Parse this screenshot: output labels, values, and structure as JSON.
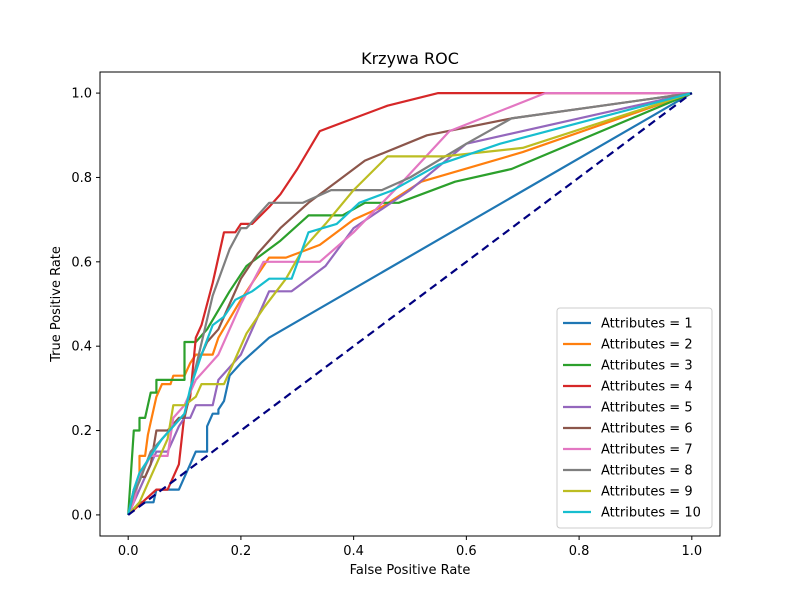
{
  "chart_data": {
    "type": "line",
    "title": "Krzywa ROC",
    "xlabel": "False Positive Rate",
    "ylabel": "True Positive Rate",
    "xlim": [
      -0.05,
      1.05
    ],
    "ylim": [
      -0.05,
      1.05
    ],
    "xticks": [
      "0.0",
      "0.2",
      "0.4",
      "0.6",
      "0.8",
      "1.0"
    ],
    "yticks": [
      "0.0",
      "0.2",
      "0.4",
      "0.6",
      "0.8",
      "1.0"
    ],
    "grid": false,
    "legend_position": "bottom-right",
    "diagonal": {
      "x": [
        0,
        1
      ],
      "y": [
        0,
        1
      ],
      "color": "#000080",
      "style": "dashed"
    },
    "series": [
      {
        "name": "Attributes = 1",
        "color": "#1f77b4",
        "x": [
          0,
          0.02,
          0.02,
          0.045,
          0.05,
          0.08,
          0.09,
          0.1,
          0.11,
          0.12,
          0.13,
          0.14,
          0.14,
          0.15,
          0.16,
          0.16,
          0.17,
          0.18,
          0.2,
          0.25,
          1
        ],
        "y": [
          0,
          0.03,
          0.03,
          0.03,
          0.06,
          0.06,
          0.06,
          0.09,
          0.12,
          0.15,
          0.15,
          0.15,
          0.21,
          0.24,
          0.24,
          0.25,
          0.27,
          0.33,
          0.36,
          0.42,
          1
        ]
      },
      {
        "name": "Attributes = 2",
        "color": "#ff7f0e",
        "x": [
          0,
          0.01,
          0.02,
          0.02,
          0.03,
          0.035,
          0.04,
          0.05,
          0.06,
          0.075,
          0.08,
          0.09,
          0.1,
          0.11,
          0.12,
          0.13,
          0.15,
          0.16,
          0.2,
          0.25,
          0.28,
          0.3,
          0.34,
          0.4,
          0.45,
          0.52,
          0.7,
          1
        ],
        "y": [
          0,
          0.05,
          0.09,
          0.14,
          0.14,
          0.19,
          0.22,
          0.28,
          0.31,
          0.31,
          0.33,
          0.33,
          0.33,
          0.36,
          0.38,
          0.38,
          0.38,
          0.42,
          0.51,
          0.61,
          0.61,
          0.62,
          0.64,
          0.7,
          0.73,
          0.79,
          0.86,
          1
        ]
      },
      {
        "name": "Attributes = 3",
        "color": "#2ca02c",
        "x": [
          0,
          0.005,
          0.01,
          0.02,
          0.02,
          0.03,
          0.035,
          0.04,
          0.05,
          0.05,
          0.07,
          0.09,
          0.1,
          0.1,
          0.12,
          0.14,
          0.18,
          0.21,
          0.27,
          0.32,
          0.38,
          0.42,
          0.48,
          0.58,
          0.68,
          1
        ],
        "y": [
          0,
          0.1,
          0.2,
          0.2,
          0.23,
          0.23,
          0.26,
          0.29,
          0.29,
          0.32,
          0.32,
          0.32,
          0.32,
          0.41,
          0.41,
          0.44,
          0.53,
          0.59,
          0.65,
          0.71,
          0.71,
          0.74,
          0.74,
          0.79,
          0.82,
          1
        ]
      },
      {
        "name": "Attributes = 4",
        "color": "#d62728",
        "x": [
          0,
          0.05,
          0.06,
          0.07,
          0.08,
          0.09,
          0.1,
          0.11,
          0.12,
          0.13,
          0.14,
          0.15,
          0.17,
          0.19,
          0.2,
          0.22,
          0.25,
          0.27,
          0.3,
          0.34,
          0.4,
          0.46,
          0.55,
          1
        ],
        "y": [
          0,
          0.06,
          0.06,
          0.06,
          0.09,
          0.12,
          0.24,
          0.28,
          0.42,
          0.45,
          0.5,
          0.55,
          0.67,
          0.67,
          0.69,
          0.69,
          0.73,
          0.76,
          0.82,
          0.91,
          0.94,
          0.97,
          1,
          1
        ]
      },
      {
        "name": "Attributes = 5",
        "color": "#9467bd",
        "x": [
          0,
          0.01,
          0.02,
          0.03,
          0.04,
          0.05,
          0.07,
          0.08,
          0.09,
          0.1,
          0.11,
          0.12,
          0.13,
          0.15,
          0.16,
          0.18,
          0.2,
          0.24,
          0.25,
          0.27,
          0.29,
          0.32,
          0.35,
          0.4,
          0.5,
          0.6,
          1
        ],
        "y": [
          0,
          0.03,
          0.06,
          0.09,
          0.12,
          0.15,
          0.15,
          0.18,
          0.21,
          0.23,
          0.23,
          0.26,
          0.26,
          0.26,
          0.32,
          0.35,
          0.38,
          0.5,
          0.53,
          0.53,
          0.53,
          0.56,
          0.59,
          0.68,
          0.77,
          0.88,
          1
        ]
      },
      {
        "name": "Attributes = 6",
        "color": "#8c564b",
        "x": [
          0,
          0.01,
          0.02,
          0.03,
          0.04,
          0.05,
          0.07,
          0.09,
          0.1,
          0.12,
          0.14,
          0.16,
          0.18,
          0.2,
          0.23,
          0.27,
          0.32,
          0.37,
          0.42,
          0.53,
          0.68,
          1
        ],
        "y": [
          0,
          0.06,
          0.09,
          0.09,
          0.12,
          0.2,
          0.2,
          0.23,
          0.23,
          0.35,
          0.41,
          0.44,
          0.5,
          0.56,
          0.62,
          0.68,
          0.74,
          0.79,
          0.84,
          0.9,
          0.94,
          1
        ]
      },
      {
        "name": "Attributes = 7",
        "color": "#e377c2",
        "x": [
          0,
          0.01,
          0.02,
          0.04,
          0.05,
          0.07,
          0.08,
          0.1,
          0.12,
          0.14,
          0.16,
          0.18,
          0.2,
          0.24,
          0.27,
          0.3,
          0.34,
          0.4,
          0.48,
          0.57,
          0.74,
          1
        ],
        "y": [
          0,
          0.03,
          0.09,
          0.14,
          0.14,
          0.14,
          0.23,
          0.26,
          0.32,
          0.35,
          0.38,
          0.44,
          0.5,
          0.6,
          0.6,
          0.6,
          0.6,
          0.67,
          0.78,
          0.91,
          1,
          1
        ]
      },
      {
        "name": "Attributes = 8",
        "color": "#7f7f7f",
        "x": [
          0,
          0.01,
          0.02,
          0.04,
          0.06,
          0.08,
          0.1,
          0.12,
          0.15,
          0.18,
          0.2,
          0.21,
          0.23,
          0.25,
          0.31,
          0.36,
          0.42,
          0.45,
          0.5,
          0.6,
          0.68,
          1
        ],
        "y": [
          0,
          0.05,
          0.08,
          0.15,
          0.18,
          0.21,
          0.24,
          0.35,
          0.52,
          0.63,
          0.68,
          0.68,
          0.71,
          0.74,
          0.74,
          0.77,
          0.77,
          0.77,
          0.8,
          0.88,
          0.94,
          1
        ]
      },
      {
        "name": "Attributes = 9",
        "color": "#bcbd22",
        "x": [
          0,
          0.02,
          0.04,
          0.06,
          0.07,
          0.08,
          0.1,
          0.12,
          0.13,
          0.15,
          0.17,
          0.19,
          0.21,
          0.24,
          0.28,
          0.31,
          0.35,
          0.4,
          0.46,
          0.56,
          0.7,
          1
        ],
        "y": [
          0,
          0.03,
          0.09,
          0.15,
          0.18,
          0.26,
          0.26,
          0.28,
          0.31,
          0.31,
          0.31,
          0.37,
          0.43,
          0.49,
          0.56,
          0.63,
          0.69,
          0.77,
          0.85,
          0.85,
          0.87,
          1
        ]
      },
      {
        "name": "Attributes = 10",
        "color": "#17becf",
        "x": [
          0,
          0.01,
          0.02,
          0.04,
          0.06,
          0.08,
          0.1,
          0.11,
          0.13,
          0.15,
          0.17,
          0.19,
          0.22,
          0.25,
          0.29,
          0.32,
          0.37,
          0.41,
          0.47,
          0.55,
          0.66,
          1
        ],
        "y": [
          0,
          0.06,
          0.1,
          0.14,
          0.18,
          0.21,
          0.24,
          0.3,
          0.38,
          0.45,
          0.47,
          0.51,
          0.53,
          0.56,
          0.56,
          0.67,
          0.69,
          0.74,
          0.77,
          0.83,
          0.88,
          1
        ]
      }
    ]
  }
}
